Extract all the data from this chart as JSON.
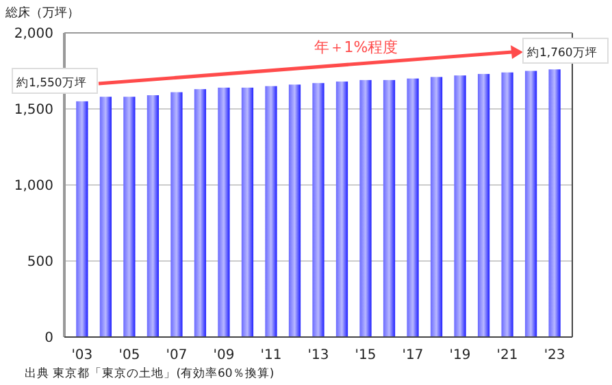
{
  "chart_data": {
    "type": "bar",
    "ylabel": "総床（万坪）",
    "categories": [
      "'03",
      null,
      "'05",
      null,
      "'07",
      null,
      "'09",
      null,
      "'11",
      null,
      "'13",
      null,
      "'15",
      null,
      "'17",
      null,
      "'19",
      null,
      "'21",
      null,
      "'23"
    ],
    "values": [
      1550,
      1580,
      1580,
      1590,
      1610,
      1630,
      1640,
      1640,
      1650,
      1660,
      1670,
      1680,
      1690,
      1690,
      1700,
      1710,
      1720,
      1730,
      1740,
      1750,
      1760
    ],
    "color": "#6a6aff",
    "ylim": [
      0,
      2000
    ],
    "yticks": [
      0,
      {
        "value": 500,
        "label": "500"
      },
      {
        "value": 1000,
        "label": "1,000"
      },
      {
        "value": 1500,
        "label": "1,500"
      },
      {
        "value": 2000,
        "label": "2,000"
      }
    ],
    "grid": "y",
    "annotations": [
      "約1,550万坪",
      "約1,760万坪",
      "年＋1%程度",
      "出典 東京都「東京の土地」(有効率60％換算)"
    ]
  }
}
